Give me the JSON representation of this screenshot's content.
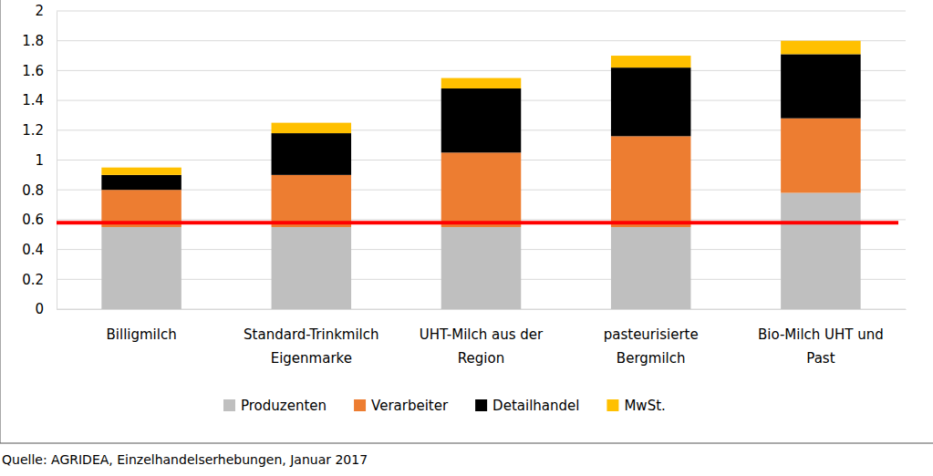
{
  "chart_data": {
    "type": "bar",
    "stacked": true,
    "grid": true,
    "legend": "bottom",
    "categories": [
      "Billigmilch",
      "Standard-Trinkmilch Eigenmarke",
      "UHT-Milch aus der Region",
      "pasteurisierte Bergmilch",
      "Bio-Milch UHT und Past"
    ],
    "series": [
      {
        "name": "Produzenten",
        "color": "#bfbfbf",
        "values": [
          0.55,
          0.55,
          0.55,
          0.55,
          0.78
        ]
      },
      {
        "name": "Verarbeiter",
        "color": "#ed7d31",
        "values": [
          0.25,
          0.35,
          0.5,
          0.61,
          0.5
        ]
      },
      {
        "name": "Detailhandel",
        "color": "#000000",
        "values": [
          0.1,
          0.28,
          0.43,
          0.46,
          0.43
        ]
      },
      {
        "name": "MwSt.",
        "color": "#ffc000",
        "values": [
          0.05,
          0.07,
          0.07,
          0.08,
          0.09
        ]
      }
    ],
    "reference_line": {
      "value": 0.58,
      "color": "#ff0000"
    },
    "ylim": [
      0,
      2
    ],
    "yticks": [
      0,
      0.2,
      0.4,
      0.6,
      0.8,
      1,
      1.2,
      1.4,
      1.6,
      1.8,
      2
    ],
    "source": "Quelle: AGRIDEA, Einzelhandelserhebungen, Januar 2017"
  }
}
